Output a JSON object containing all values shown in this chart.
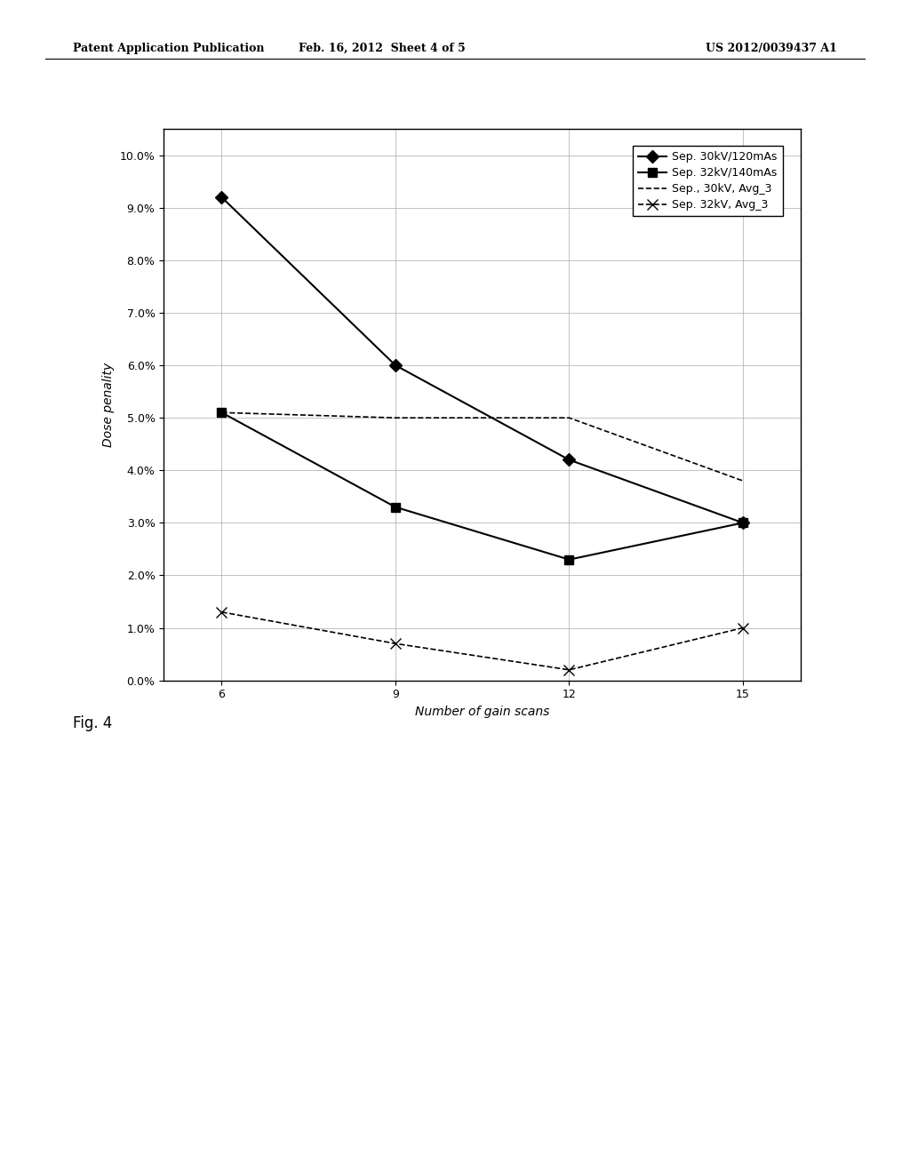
{
  "header_left": "Patent Application Publication",
  "header_center": "Feb. 16, 2012  Sheet 4 of 5",
  "header_right": "US 2012/0039437 A1",
  "fig_label": "Fig. 4",
  "xlabel": "Number of gain scans",
  "ylabel": "Dose penality",
  "ylim": [
    0.0,
    0.105
  ],
  "yticks": [
    0.0,
    0.01,
    0.02,
    0.03,
    0.04,
    0.05,
    0.06,
    0.07,
    0.08,
    0.09,
    0.1
  ],
  "ytick_labels": [
    "0.0%",
    "1.0%",
    "2.0%",
    "3.0%",
    "4.0%",
    "5.0%",
    "6.0%",
    "7.0%",
    "8.0%",
    "9.0%",
    "10.0%"
  ],
  "xticks": [
    6,
    9,
    12,
    15
  ],
  "xlim": [
    5,
    16
  ],
  "series": [
    {
      "label": "Sep. 30kV/120mAs",
      "x": [
        6,
        9,
        12,
        15
      ],
      "y": [
        0.092,
        0.06,
        0.042,
        0.03
      ],
      "color": "#000000",
      "marker": "D",
      "markersize": 7,
      "linestyle": "-",
      "linewidth": 1.5
    },
    {
      "label": "Sep. 32kV/140mAs",
      "x": [
        6,
        9,
        12,
        15
      ],
      "y": [
        0.051,
        0.033,
        0.023,
        0.03
      ],
      "color": "#000000",
      "marker": "s",
      "markersize": 7,
      "linestyle": "-",
      "linewidth": 1.5
    },
    {
      "label": "Sep., 30kV, Avg_3",
      "x": [
        6,
        9,
        12,
        15
      ],
      "y": [
        0.051,
        0.05,
        0.05,
        0.038
      ],
      "color": "#000000",
      "marker": null,
      "markersize": 0,
      "linestyle": "--",
      "linewidth": 1.2
    },
    {
      "label": "Sep. 32kV, Avg_3",
      "x": [
        6,
        9,
        12,
        15
      ],
      "y": [
        0.013,
        0.007,
        0.002,
        0.01
      ],
      "color": "#000000",
      "marker": "x",
      "markersize": 8,
      "linestyle": "--",
      "linewidth": 1.2
    }
  ],
  "bg_color": "#ffffff",
  "plot_bg_color": "#ffffff",
  "grid_color": "#aaaaaa",
  "legend_fontsize": 9,
  "axis_fontsize": 10,
  "tick_fontsize": 9,
  "xlabel_fontsize": 10,
  "ylabel_fontsize": 10,
  "fig_label_text": "Fig. 4",
  "fig_label_fontsize": 12
}
